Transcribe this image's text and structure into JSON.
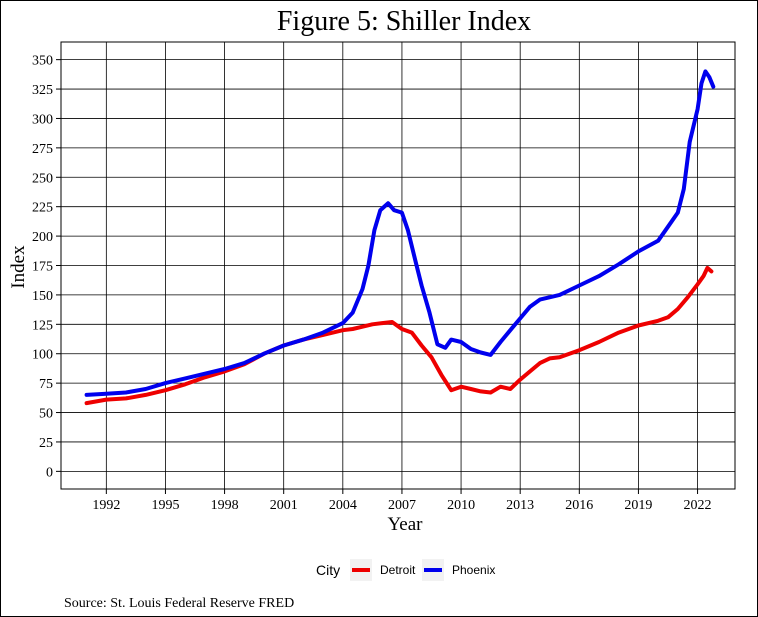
{
  "chart_data": {
    "type": "line",
    "title": "Figure 5: Shiller Index",
    "xlabel": "Year",
    "ylabel": "Index",
    "caption": "Source: St. Louis Federal Reserve FRED",
    "legend_title": "City",
    "legend_position": "bottom",
    "grid": true,
    "xlim": [
      1989.7,
      2023.9
    ],
    "ylim": [
      -15,
      365
    ],
    "x_ticks": [
      1992,
      1995,
      1998,
      2001,
      2004,
      2007,
      2010,
      2013,
      2016,
      2019,
      2022
    ],
    "y_ticks": [
      0,
      25,
      50,
      75,
      100,
      125,
      150,
      175,
      200,
      225,
      250,
      275,
      300,
      325,
      350
    ],
    "series": [
      {
        "name": "Detroit",
        "color": "#ee0000",
        "x": [
          1991.0,
          1992.0,
          1993.0,
          1994.0,
          1995.0,
          1996.0,
          1997.0,
          1998.0,
          1999.0,
          2000.0,
          2001.0,
          2002.0,
          2003.0,
          2004.0,
          2004.5,
          2005.0,
          2005.5,
          2006.0,
          2006.5,
          2007.0,
          2007.5,
          2008.0,
          2008.5,
          2009.0,
          2009.5,
          2010.0,
          2010.5,
          2011.0,
          2011.5,
          2012.0,
          2012.5,
          2013.0,
          2013.5,
          2014.0,
          2014.5,
          2015.0,
          2016.0,
          2017.0,
          2018.0,
          2019.0,
          2020.0,
          2020.5,
          2021.0,
          2021.5,
          2022.0,
          2022.3,
          2022.5,
          2022.7
        ],
        "values": [
          58,
          61,
          62,
          65,
          69,
          74,
          80,
          85,
          91,
          100,
          107,
          112,
          116,
          120,
          121,
          123,
          125,
          126,
          127,
          121,
          118,
          107,
          97,
          82,
          69,
          72,
          70,
          68,
          67,
          72,
          70,
          78,
          85,
          92,
          96,
          97,
          103,
          110,
          118,
          124,
          128,
          131,
          138,
          148,
          159,
          166,
          173,
          170
        ]
      },
      {
        "name": "Phoenix",
        "color": "#0000ee",
        "x": [
          1991.0,
          1992.0,
          1993.0,
          1994.0,
          1995.0,
          1996.0,
          1997.0,
          1998.0,
          1999.0,
          2000.0,
          2001.0,
          2002.0,
          2003.0,
          2004.0,
          2004.5,
          2005.0,
          2005.3,
          2005.6,
          2005.9,
          2006.3,
          2006.6,
          2007.0,
          2007.3,
          2007.7,
          2008.0,
          2008.4,
          2008.8,
          2009.2,
          2009.5,
          2010.0,
          2010.5,
          2011.0,
          2011.5,
          2012.0,
          2012.5,
          2013.0,
          2013.5,
          2014.0,
          2015.0,
          2016.0,
          2017.0,
          2018.0,
          2019.0,
          2020.0,
          2020.5,
          2021.0,
          2021.3,
          2021.6,
          2022.0,
          2022.2,
          2022.4,
          2022.6,
          2022.8
        ],
        "values": [
          65,
          66,
          67,
          70,
          75,
          79,
          83,
          87,
          92,
          100,
          107,
          112,
          118,
          126,
          135,
          155,
          175,
          205,
          222,
          228,
          222,
          220,
          205,
          178,
          158,
          135,
          108,
          105,
          112,
          110,
          104,
          101,
          99,
          110,
          120,
          130,
          140,
          146,
          150,
          158,
          166,
          176,
          187,
          196,
          208,
          220,
          240,
          280,
          308,
          330,
          340,
          335,
          327
        ]
      }
    ]
  }
}
